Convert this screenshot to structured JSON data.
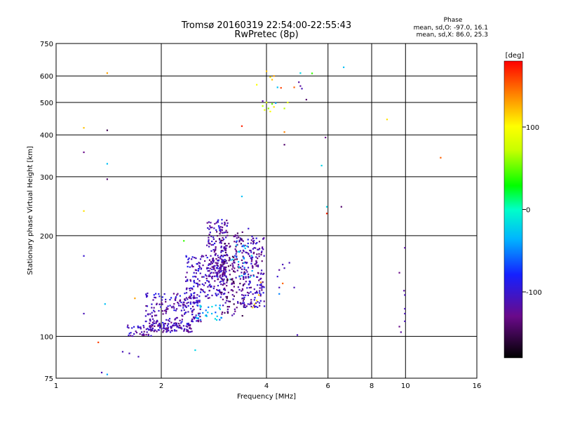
{
  "chart_data": {
    "type": "scatter",
    "title": "Tromsø 20160319 22:54:00-22:55:43",
    "subtitle": "RwPretec (8p)",
    "xlabel": "Frequency [MHz]",
    "ylabel": "Stationary phase Virtual Height [km]",
    "x_scale": "log",
    "y_scale": "log",
    "xlim": [
      1,
      16
    ],
    "ylim": [
      75,
      750
    ],
    "x_ticks": [
      1,
      2,
      4,
      6,
      8,
      10,
      16
    ],
    "y_ticks": [
      75,
      100,
      200,
      300,
      400,
      500,
      600,
      750
    ],
    "grid": true,
    "phase_box": {
      "title": "Phase",
      "line1": "mean, sd,O: -97.0, 16.1",
      "line2": "mean, sd,X:  86.0, 25.3"
    },
    "colorbar": {
      "label": "[deg]",
      "ticks": [
        100,
        0,
        -100
      ],
      "range": [
        -180,
        180
      ]
    },
    "points": [
      {
        "x": 1.2,
        "y": 420,
        "phase": 120
      },
      {
        "x": 1.2,
        "y": 355,
        "phase": -130
      },
      {
        "x": 1.2,
        "y": 237,
        "phase": 110
      },
      {
        "x": 1.2,
        "y": 174,
        "phase": -100
      },
      {
        "x": 1.2,
        "y": 117,
        "phase": -110
      },
      {
        "x": 1.32,
        "y": 96,
        "phase": 160
      },
      {
        "x": 1.35,
        "y": 78,
        "phase": -110
      },
      {
        "x": 1.4,
        "y": 612,
        "phase": 130
      },
      {
        "x": 1.4,
        "y": 413,
        "phase": -150
      },
      {
        "x": 1.4,
        "y": 328,
        "phase": -30
      },
      {
        "x": 1.4,
        "y": 295,
        "phase": -140
      },
      {
        "x": 1.38,
        "y": 125,
        "phase": -30
      },
      {
        "x": 1.4,
        "y": 77,
        "phase": -40
      },
      {
        "x": 1.55,
        "y": 90,
        "phase": -110
      },
      {
        "x": 1.62,
        "y": 89,
        "phase": -110
      },
      {
        "x": 1.72,
        "y": 87,
        "phase": -110
      },
      {
        "x": 1.82,
        "y": 103,
        "phase": -110
      },
      {
        "x": 2.15,
        "y": 104,
        "phase": -110
      },
      {
        "x": 2.32,
        "y": 193,
        "phase": 40
      },
      {
        "x": 2.5,
        "y": 91,
        "phase": -20
      },
      {
        "x": 2.35,
        "y": 118,
        "phase": 140
      },
      {
        "x": 1.68,
        "y": 130,
        "phase": 130
      },
      {
        "x": 3.15,
        "y": 148,
        "phase": -10
      },
      {
        "x": 3.3,
        "y": 200,
        "phase": -120
      },
      {
        "x": 3.4,
        "y": 425,
        "phase": 170
      },
      {
        "x": 3.4,
        "y": 262,
        "phase": -30
      },
      {
        "x": 3.55,
        "y": 210,
        "phase": -100
      },
      {
        "x": 3.7,
        "y": 125,
        "phase": 110
      },
      {
        "x": 3.65,
        "y": 122,
        "phase": 110
      },
      {
        "x": 3.75,
        "y": 128,
        "phase": 100
      },
      {
        "x": 3.8,
        "y": 133,
        "phase": 120
      },
      {
        "x": 3.85,
        "y": 145,
        "phase": 130
      },
      {
        "x": 4.45,
        "y": 144,
        "phase": 150
      },
      {
        "x": 3.9,
        "y": 505,
        "phase": -120
      },
      {
        "x": 3.9,
        "y": 488,
        "phase": 70
      },
      {
        "x": 3.95,
        "y": 475,
        "phase": 90
      },
      {
        "x": 4.0,
        "y": 500,
        "phase": 80
      },
      {
        "x": 4.05,
        "y": 480,
        "phase": 60
      },
      {
        "x": 4.1,
        "y": 470,
        "phase": 100
      },
      {
        "x": 4.15,
        "y": 495,
        "phase": 50
      },
      {
        "x": 4.2,
        "y": 485,
        "phase": 110
      },
      {
        "x": 4.25,
        "y": 498,
        "phase": -40
      },
      {
        "x": 4.5,
        "y": 480,
        "phase": 70
      },
      {
        "x": 4.6,
        "y": 500,
        "phase": 90
      },
      {
        "x": 4.0,
        "y": 620,
        "phase": 120
      },
      {
        "x": 4.1,
        "y": 595,
        "phase": 110
      },
      {
        "x": 4.2,
        "y": 600,
        "phase": 130
      },
      {
        "x": 4.15,
        "y": 585,
        "phase": 120
      },
      {
        "x": 3.75,
        "y": 565,
        "phase": 100
      },
      {
        "x": 4.3,
        "y": 555,
        "phase": -30
      },
      {
        "x": 4.4,
        "y": 553,
        "phase": 160
      },
      {
        "x": 4.8,
        "y": 555,
        "phase": 150
      },
      {
        "x": 4.95,
        "y": 575,
        "phase": -120
      },
      {
        "x": 5.0,
        "y": 560,
        "phase": -120
      },
      {
        "x": 5.05,
        "y": 550,
        "phase": -110
      },
      {
        "x": 5.2,
        "y": 510,
        "phase": -140
      },
      {
        "x": 5.0,
        "y": 612,
        "phase": -20
      },
      {
        "x": 5.4,
        "y": 611,
        "phase": 40
      },
      {
        "x": 4.5,
        "y": 408,
        "phase": 140
      },
      {
        "x": 4.5,
        "y": 374,
        "phase": -140
      },
      {
        "x": 5.75,
        "y": 324,
        "phase": -20
      },
      {
        "x": 5.9,
        "y": 393,
        "phase": -130
      },
      {
        "x": 5.95,
        "y": 244,
        "phase": -20
      },
      {
        "x": 5.95,
        "y": 233,
        "phase": 170
      },
      {
        "x": 6.55,
        "y": 244,
        "phase": -140
      },
      {
        "x": 6.65,
        "y": 637,
        "phase": -30
      },
      {
        "x": 8.85,
        "y": 445,
        "phase": 110
      },
      {
        "x": 12.6,
        "y": 342,
        "phase": 150
      },
      {
        "x": 4.9,
        "y": 101,
        "phase": -110
      },
      {
        "x": 4.35,
        "y": 158,
        "phase": -120
      },
      {
        "x": 4.45,
        "y": 164,
        "phase": -110
      },
      {
        "x": 4.5,
        "y": 160,
        "phase": -110
      },
      {
        "x": 4.3,
        "y": 151,
        "phase": -100
      },
      {
        "x": 4.35,
        "y": 140,
        "phase": -110
      },
      {
        "x": 4.65,
        "y": 166,
        "phase": -110
      },
      {
        "x": 4.35,
        "y": 134,
        "phase": -50
      },
      {
        "x": 4.8,
        "y": 140,
        "phase": -110
      },
      {
        "x": 9.6,
        "y": 155,
        "phase": -130
      },
      {
        "x": 9.7,
        "y": 103,
        "phase": -120
      },
      {
        "x": 9.6,
        "y": 107,
        "phase": -130
      },
      {
        "x": 9.95,
        "y": 184,
        "phase": -120
      },
      {
        "x": 9.9,
        "y": 137,
        "phase": -120
      },
      {
        "x": 9.95,
        "y": 117,
        "phase": -110
      },
      {
        "x": 9.95,
        "y": 121,
        "phase": -110
      },
      {
        "x": 9.95,
        "y": 111,
        "phase": -110
      },
      {
        "x": 9.95,
        "y": 133,
        "phase": -110
      }
    ],
    "clusters": [
      {
        "x": [
          1.85,
          2.45
        ],
        "y": [
          103,
          110
        ],
        "phase": -115,
        "n": 110
      },
      {
        "x": [
          1.6,
          1.9
        ],
        "y": [
          100,
          108
        ],
        "phase": -110,
        "n": 40
      },
      {
        "x": [
          1.8,
          2.6
        ],
        "y": [
          110,
          135
        ],
        "phase": -110,
        "n": 180
      },
      {
        "x": [
          2.35,
          3.05
        ],
        "y": [
          130,
          175
        ],
        "phase": -110,
        "n": 200
      },
      {
        "x": [
          2.7,
          3.1
        ],
        "y": [
          150,
          225
        ],
        "phase": -115,
        "n": 160
      },
      {
        "x": [
          2.95,
          3.45
        ],
        "y": [
          115,
          205
        ],
        "phase": -130,
        "n": 170
      },
      {
        "x": [
          3.4,
          3.95
        ],
        "y": [
          122,
          200
        ],
        "phase": -115,
        "n": 180
      },
      {
        "x": [
          3.15,
          3.7
        ],
        "y": [
          150,
          195
        ],
        "phase": -40,
        "n": 25
      },
      {
        "x": [
          2.5,
          3.0
        ],
        "y": [
          112,
          125
        ],
        "phase": -40,
        "n": 30
      }
    ]
  }
}
